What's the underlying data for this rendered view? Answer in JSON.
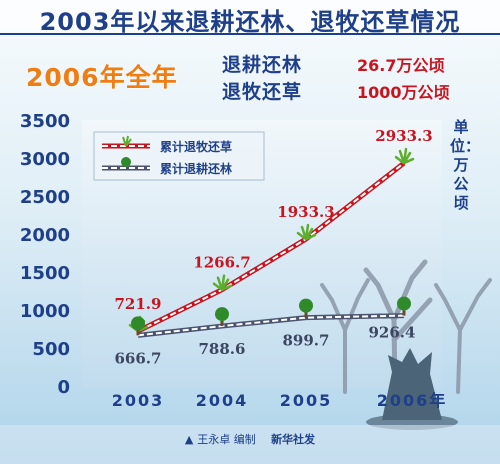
{
  "header": {
    "title": "2003年以来退耕还林、退牧还草情况",
    "year_heading": "2006年全年",
    "stats": [
      {
        "label": "退耕还林",
        "value": "26.7万公顷"
      },
      {
        "label": "退牧还草",
        "value": "1000万公顷"
      }
    ]
  },
  "unit": "单位：万公顷",
  "credit": {
    "author": "王永卓 编制",
    "agency": "新华社发"
  },
  "colors": {
    "grazing_line": "#c8141e",
    "farmland_line": "#4a5470",
    "title": "#1e3f8a",
    "accent": "#f07c14"
  },
  "chart_data": {
    "type": "line",
    "x": [
      "2003",
      "2004",
      "2005",
      "2006年"
    ],
    "ylim": [
      0,
      3500
    ],
    "yticks": [
      0,
      500,
      1000,
      1500,
      2000,
      2500,
      3000,
      3500
    ],
    "grid": false,
    "legend_position": "top-left",
    "series": [
      {
        "name": "累计退牧还草",
        "values": [
          721.9,
          1266.7,
          1933.3,
          2933.3
        ],
        "labels": [
          "721.9",
          "1266.7",
          "1933.3",
          "2933.3"
        ]
      },
      {
        "name": "累计退耕还林",
        "values": [
          666.7,
          788.6,
          899.7,
          926.4
        ],
        "labels": [
          "666.7",
          "788.6",
          "899.7",
          "926.4"
        ]
      }
    ]
  }
}
